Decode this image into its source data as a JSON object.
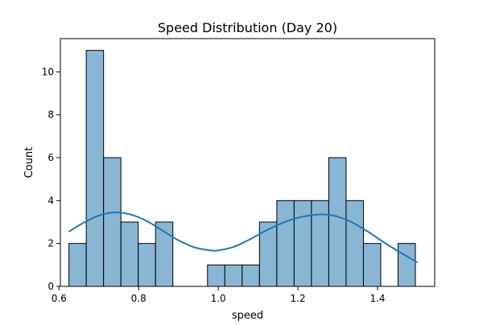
{
  "chart_data": {
    "type": "bar",
    "subtype": "histogram-with-kde",
    "title": "Speed Distribution (Day 20)",
    "xlabel": "speed",
    "ylabel": "Count",
    "xlim": [
      0.6035,
      1.5435
    ],
    "ylim": [
      0,
      11.55
    ],
    "xticks": [
      0.6,
      0.8,
      1.0,
      1.2,
      1.4
    ],
    "xtick_labels": [
      "0.6",
      "0.8",
      "1.0",
      "1.2",
      "1.4"
    ],
    "yticks": [
      0,
      2,
      4,
      6,
      8,
      10
    ],
    "ytick_labels": [
      "0",
      "2",
      "4",
      "6",
      "8",
      "10"
    ],
    "grid": false,
    "legend": "none",
    "colors": {
      "bar_fill": "#8ab6d6",
      "bar_edge": "#000000",
      "kde_line": "#1f77b4"
    },
    "bins": {
      "start": 0.625,
      "width": 0.0435,
      "counts": [
        2,
        11,
        6,
        3,
        2,
        3,
        0,
        0,
        1,
        1,
        1,
        3,
        4,
        4,
        4,
        6,
        4,
        2,
        0,
        2
      ]
    },
    "kde": {
      "x": [
        0.625,
        0.66,
        0.7,
        0.74,
        0.78,
        0.82,
        0.86,
        0.9,
        0.94,
        0.98,
        1.0,
        1.04,
        1.08,
        1.12,
        1.16,
        1.2,
        1.24,
        1.27,
        1.3,
        1.34,
        1.38,
        1.42,
        1.46,
        1.5
      ],
      "y": [
        2.55,
        2.95,
        3.3,
        3.45,
        3.35,
        3.05,
        2.6,
        2.15,
        1.82,
        1.68,
        1.68,
        1.85,
        2.2,
        2.6,
        2.95,
        3.2,
        3.33,
        3.35,
        3.25,
        2.95,
        2.5,
        2.0,
        1.55,
        1.12
      ]
    }
  }
}
